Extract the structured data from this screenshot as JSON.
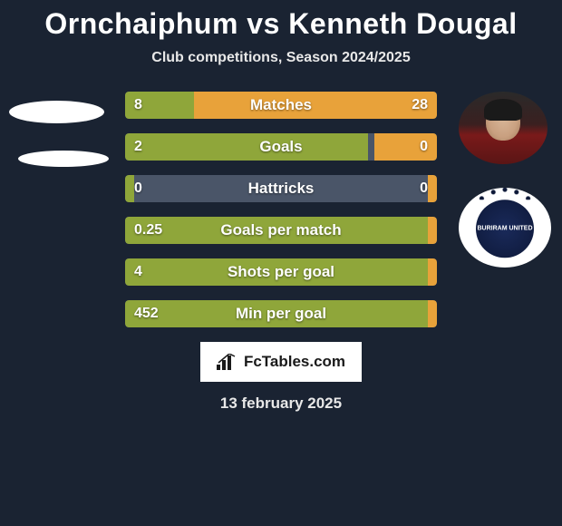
{
  "title": "Ornchaiphum vs Kenneth Dougal",
  "subtitle": "Club competitions, Season 2024/2025",
  "date": "13 february 2025",
  "footer_brand": "FcTables.com",
  "colors": {
    "background": "#1a2332",
    "bar_bg": "#4a5568",
    "left_fill": "#8fa63a",
    "right_fill": "#e8a23a",
    "text": "#ffffff"
  },
  "stats": [
    {
      "label": "Matches",
      "left_val": "8",
      "right_val": "28",
      "left_pct": 22.2,
      "right_pct": 77.8
    },
    {
      "label": "Goals",
      "left_val": "2",
      "right_val": "0",
      "left_pct": 78.0,
      "right_pct": 20.0
    },
    {
      "label": "Hattricks",
      "left_val": "0",
      "right_val": "0",
      "left_pct": 3.0,
      "right_pct": 3.0
    },
    {
      "label": "Goals per match",
      "left_val": "0.25",
      "right_val": "",
      "left_pct": 97.0,
      "right_pct": 3.0
    },
    {
      "label": "Shots per goal",
      "left_val": "4",
      "right_val": "",
      "left_pct": 97.0,
      "right_pct": 3.0
    },
    {
      "label": "Min per goal",
      "left_val": "452",
      "right_val": "",
      "left_pct": 97.0,
      "right_pct": 3.0
    }
  ],
  "club_logo_text": "BURIRAM UNITED"
}
